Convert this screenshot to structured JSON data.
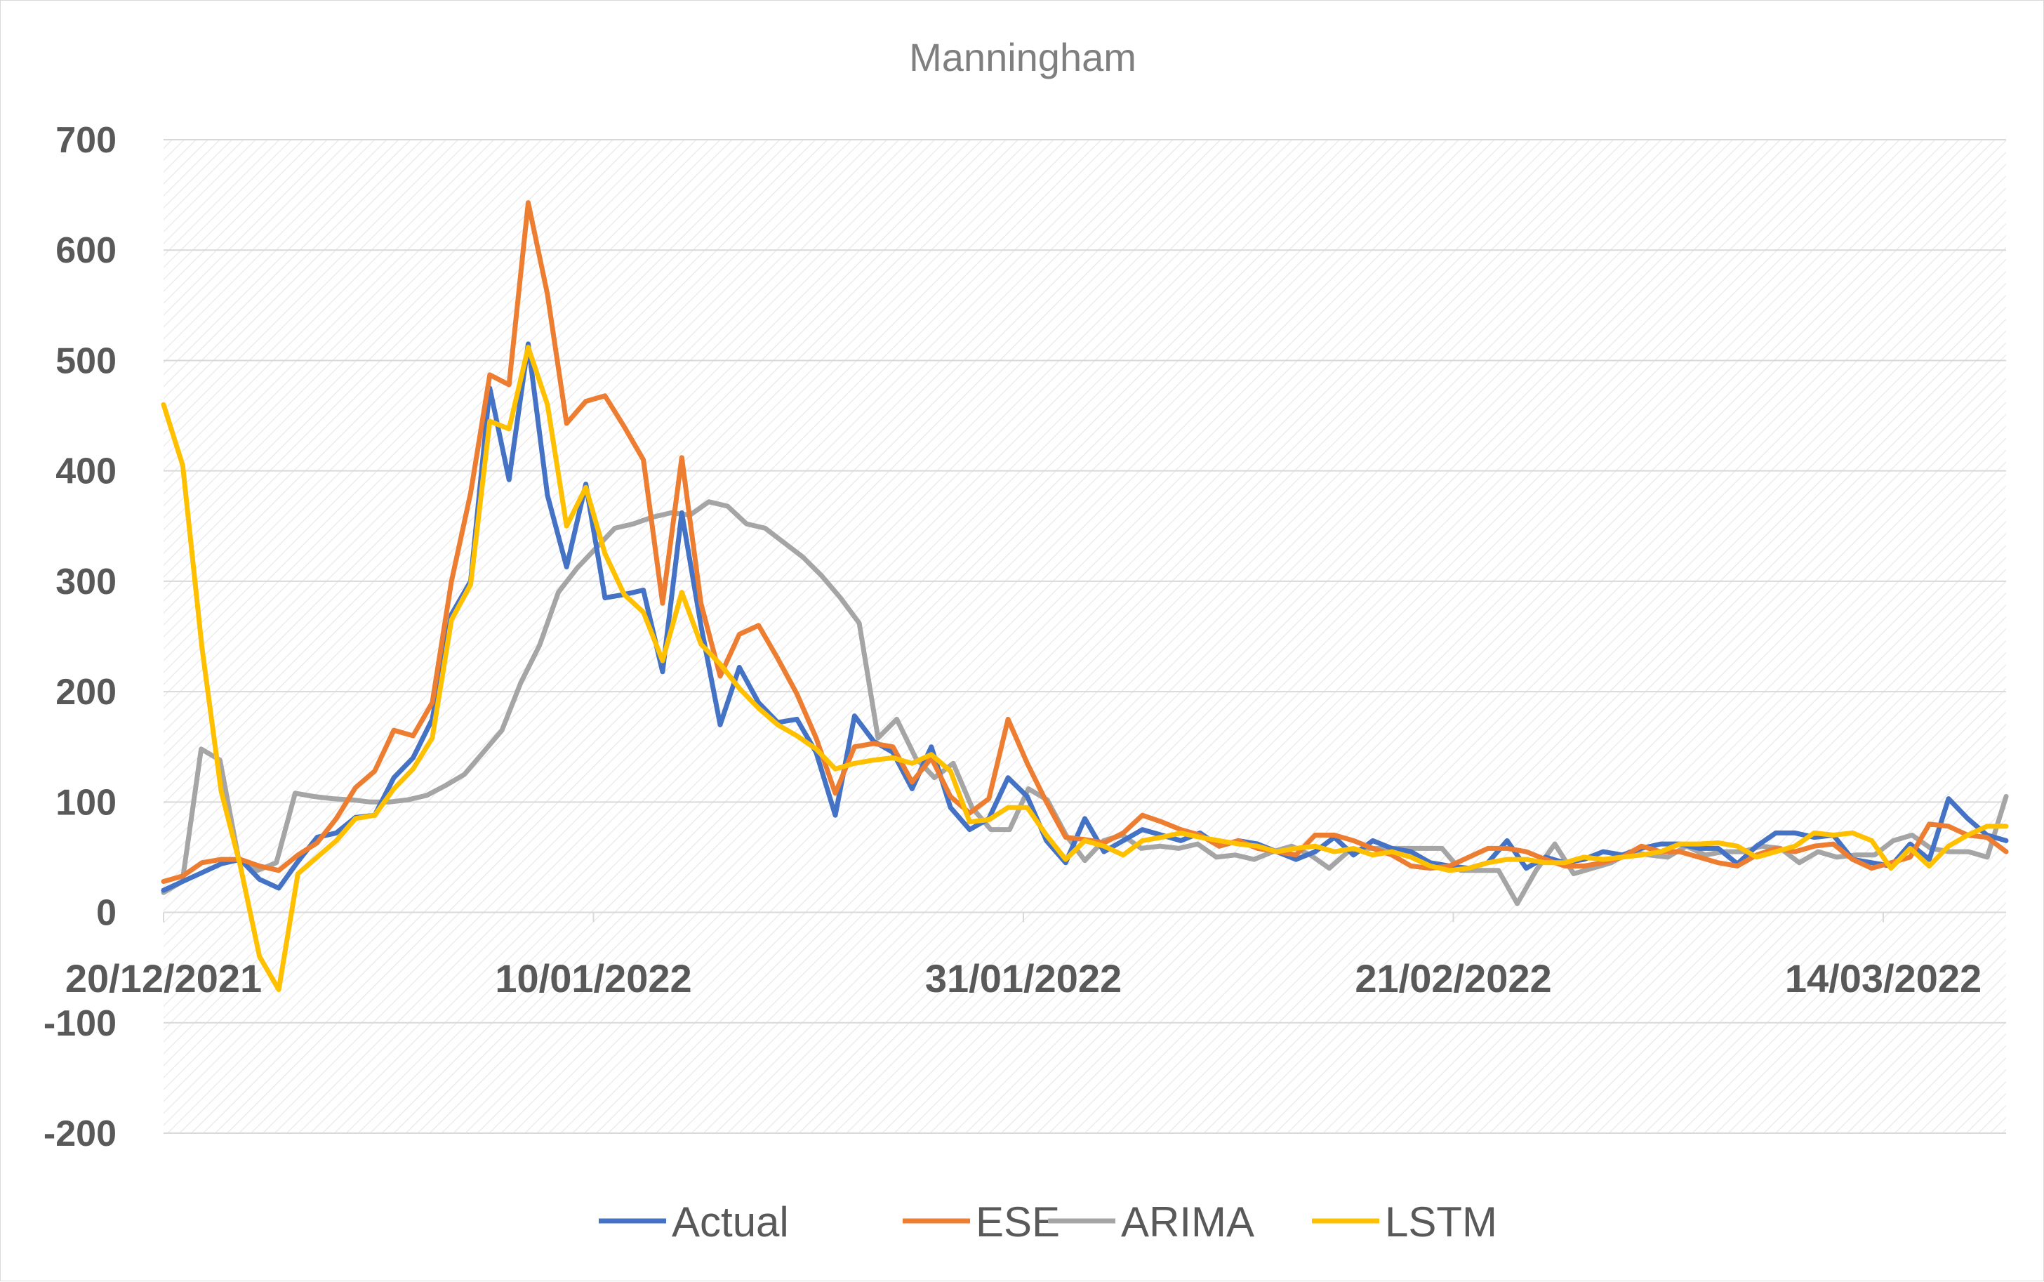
{
  "chart_data": {
    "type": "line",
    "title": "Manningham",
    "xlabel": "",
    "ylabel": "",
    "ylim": [
      -200,
      700
    ],
    "yticks": [
      700,
      600,
      500,
      400,
      300,
      200,
      100,
      0,
      -100,
      -200
    ],
    "x_start": "20/12/2021",
    "x_tick_labels": [
      "20/12/2021",
      "10/01/2022",
      "31/01/2022",
      "21/02/2022",
      "14/03/2022"
    ],
    "x_tick_days": [
      0,
      21,
      42,
      63,
      84
    ],
    "x_range_days": [
      0,
      90
    ],
    "grid": true,
    "legend_position": "bottom",
    "series": [
      {
        "name": "Actual",
        "color": "#4472c4",
        "values": [
          20,
          28,
          36,
          44,
          48,
          30,
          22,
          46,
          68,
          72,
          86,
          88,
          122,
          140,
          175,
          270,
          300,
          475,
          392,
          515,
          378,
          313,
          388,
          285,
          288,
          292,
          218,
          362,
          260,
          170,
          222,
          190,
          172,
          175,
          145,
          88,
          178,
          155,
          145,
          112,
          150,
          95,
          75,
          85,
          122,
          105,
          65,
          45,
          85,
          55,
          65,
          75,
          70,
          65,
          72,
          60,
          65,
          62,
          55,
          48,
          55,
          68,
          52,
          65,
          58,
          55,
          45,
          42,
          40,
          45,
          65,
          40,
          50,
          45,
          48,
          55,
          52,
          58,
          62,
          62,
          58,
          58,
          44,
          60,
          72,
          72,
          68,
          70,
          48,
          45,
          42,
          62,
          48,
          103,
          85,
          70,
          65
        ]
      },
      {
        "name": "ESE",
        "color": "#ed7d31",
        "values": [
          28,
          33,
          45,
          48,
          48,
          42,
          38,
          52,
          63,
          85,
          113,
          128,
          165,
          160,
          190,
          300,
          380,
          487,
          478,
          643,
          560,
          443,
          463,
          468,
          440,
          410,
          280,
          412,
          280,
          214,
          252,
          260,
          230,
          198,
          158,
          108,
          150,
          153,
          150,
          118,
          140,
          105,
          90,
          103,
          175,
          135,
          100,
          68,
          66,
          63,
          72,
          88,
          82,
          75,
          70,
          60,
          65,
          58,
          55,
          52,
          70,
          70,
          65,
          58,
          52,
          42,
          40,
          42,
          50,
          58,
          58,
          55,
          48,
          42,
          42,
          45,
          50,
          60,
          55,
          55,
          50,
          45,
          42,
          52,
          58,
          55,
          60,
          62,
          48,
          40,
          45,
          50,
          80,
          78,
          70,
          68,
          55
        ]
      },
      {
        "name": "ARIMA",
        "color": "#a5a5a5",
        "values": [
          18,
          28,
          148,
          138,
          48,
          38,
          45,
          108,
          105,
          103,
          102,
          100,
          100,
          102,
          106,
          115,
          125,
          145,
          165,
          208,
          242,
          290,
          312,
          330,
          348,
          352,
          358,
          362,
          360,
          372,
          368,
          352,
          348,
          335,
          322,
          305,
          285,
          262,
          158,
          175,
          140,
          122,
          135,
          95,
          75,
          75,
          112,
          102,
          70,
          47,
          65,
          70,
          58,
          60,
          58,
          62,
          50,
          52,
          48,
          55,
          60,
          52,
          40,
          55,
          58,
          58,
          58,
          58,
          58,
          38,
          38,
          38,
          8,
          38,
          62,
          35,
          40,
          45,
          55,
          52,
          50,
          60,
          52,
          55,
          55,
          60,
          58,
          45,
          55,
          50,
          52,
          52,
          65,
          70,
          58,
          55,
          55,
          50,
          105
        ]
      },
      {
        "name": "LSTM",
        "color": "#ffc000",
        "values": [
          460,
          405,
          240,
          110,
          42,
          -40,
          -70,
          35,
          50,
          65,
          85,
          88,
          112,
          130,
          158,
          265,
          297,
          445,
          438,
          512,
          460,
          350,
          385,
          325,
          288,
          272,
          228,
          290,
          243,
          225,
          203,
          185,
          170,
          160,
          148,
          130,
          135,
          138,
          140,
          135,
          143,
          128,
          82,
          84,
          95,
          95,
          70,
          48,
          65,
          60,
          52,
          65,
          68,
          72,
          68,
          65,
          62,
          60,
          55,
          58,
          60,
          55,
          58,
          52,
          55,
          50,
          42,
          38,
          40,
          45,
          48,
          48,
          45,
          45,
          50,
          48,
          50,
          52,
          55,
          62,
          62,
          63,
          60,
          50,
          55,
          60,
          72,
          70,
          72,
          65,
          40,
          58,
          42,
          60,
          70,
          78,
          78
        ]
      }
    ]
  }
}
